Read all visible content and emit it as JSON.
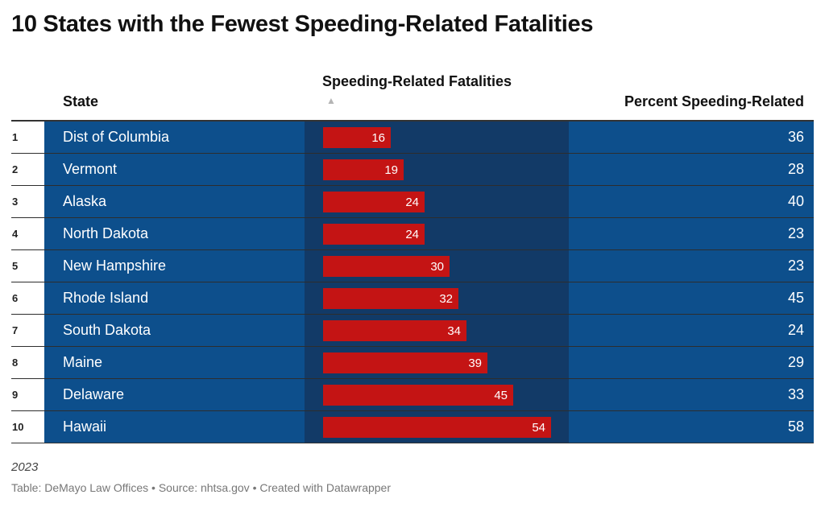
{
  "title": "10 States with the Fewest Speeding-Related Fatalities",
  "columns": {
    "state": "State",
    "fatalities": "Speeding-Related Fatalities",
    "percent": "Percent Speeding-Related"
  },
  "sort_icon": "▲",
  "note": "2023",
  "footer": "Table: DeMayo Law Offices • Source: nhtsa.gov • Created with Datawrapper",
  "colors": {
    "cell_blue": "#0d4f8c",
    "bar_column_bg": "#123a67",
    "bar_red": "#c41414"
  },
  "chart_data": {
    "type": "table",
    "title": "10 States with the Fewest Speeding-Related Fatalities",
    "bar_max": 54,
    "rows": [
      {
        "rank": "1",
        "state": "Dist of Columbia",
        "fatalities": 16,
        "percent": 36
      },
      {
        "rank": "2",
        "state": "Vermont",
        "fatalities": 19,
        "percent": 28
      },
      {
        "rank": "3",
        "state": "Alaska",
        "fatalities": 24,
        "percent": 40
      },
      {
        "rank": "4",
        "state": "North Dakota",
        "fatalities": 24,
        "percent": 23
      },
      {
        "rank": "5",
        "state": "New Hampshire",
        "fatalities": 30,
        "percent": 23
      },
      {
        "rank": "6",
        "state": "Rhode Island",
        "fatalities": 32,
        "percent": 45
      },
      {
        "rank": "7",
        "state": "South Dakota",
        "fatalities": 34,
        "percent": 24
      },
      {
        "rank": "8",
        "state": "Maine",
        "fatalities": 39,
        "percent": 29
      },
      {
        "rank": "9",
        "state": "Delaware",
        "fatalities": 45,
        "percent": 33
      },
      {
        "rank": "10",
        "state": "Hawaii",
        "fatalities": 54,
        "percent": 58
      }
    ]
  }
}
